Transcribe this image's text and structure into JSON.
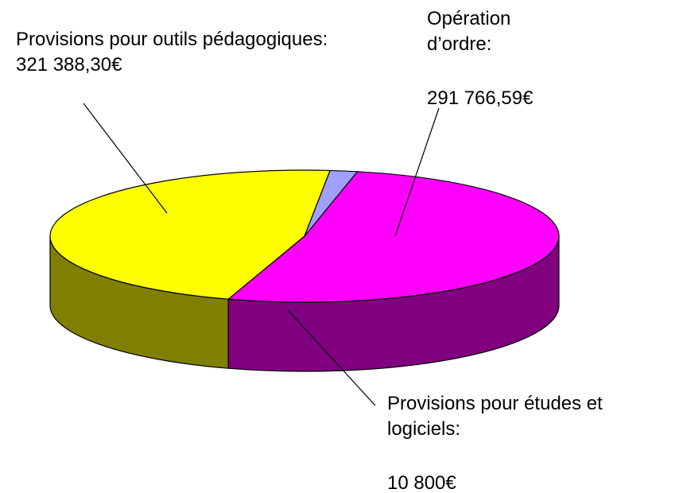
{
  "chart_data": {
    "type": "pie3d",
    "categories": [
      "Provisions pour outils pédagogiques:",
      "Opération d’ordre:",
      "Provisions pour études et logiciels:"
    ],
    "values": [
      321388.3,
      291766.59,
      10800
    ],
    "value_labels": [
      "321 388,30€",
      "291 766,59€",
      "10 800€"
    ],
    "colors": [
      "#ff00ff",
      "#ffff00",
      "#a0a0ff"
    ],
    "side_colors": [
      "#800080",
      "#808000",
      "#4d4d80"
    ]
  }
}
